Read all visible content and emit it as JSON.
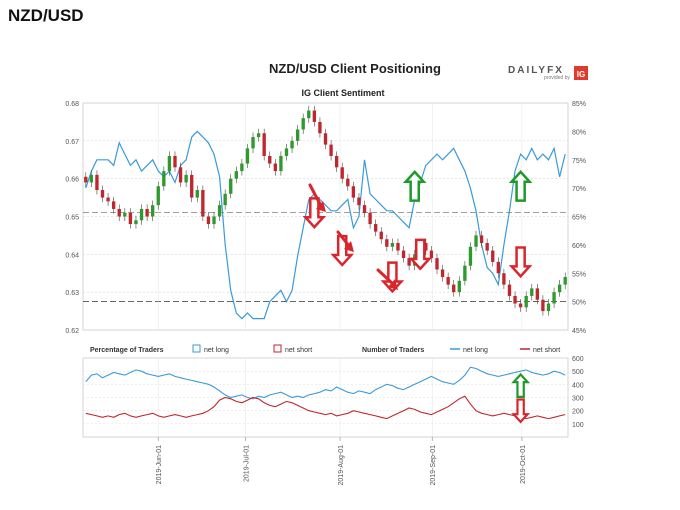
{
  "page_title": "NZD/USD",
  "brand": {
    "logo_text": "DAILYFX",
    "provided_by": "provided by",
    "ig_mark": "IG",
    "accent": "#e03a2f"
  },
  "chart_data": [
    {
      "type": "candlestick",
      "title": "NZD/USD Client Positioning",
      "subtitle": "IG Client Sentiment",
      "ylim_left": [
        0.62,
        0.68
      ],
      "y_ticks_left": [
        "0.62",
        "0.63",
        "0.64",
        "0.65",
        "0.66",
        "0.67",
        "0.68"
      ],
      "ylim_right": [
        45,
        85
      ],
      "y_ticks_right": [
        "45%",
        "50%",
        "55%",
        "60%",
        "65%",
        "70%",
        "75%",
        "80%",
        "85%"
      ],
      "x_ticks": [
        "2019-Jun-01",
        "2019-Jul-01",
        "2019-Aug-01",
        "2019-Sep-01",
        "2019-Oct-01"
      ],
      "colors": {
        "up": "#2e9a2e",
        "down": "#c0262d",
        "long_line": "#3a9ad9",
        "net_long_area": "#e2f0f9",
        "net_short_area": "#fbe0e0"
      },
      "close": [
        0.659,
        0.661,
        0.657,
        0.655,
        0.654,
        0.652,
        0.65,
        0.651,
        0.648,
        0.649,
        0.652,
        0.65,
        0.653,
        0.658,
        0.662,
        0.666,
        0.663,
        0.659,
        0.661,
        0.655,
        0.657,
        0.65,
        0.648,
        0.65,
        0.653,
        0.656,
        0.66,
        0.662,
        0.664,
        0.668,
        0.671,
        0.672,
        0.666,
        0.664,
        0.662,
        0.666,
        0.668,
        0.67,
        0.673,
        0.676,
        0.678,
        0.675,
        0.672,
        0.669,
        0.666,
        0.663,
        0.66,
        0.658,
        0.655,
        0.653,
        0.651,
        0.648,
        0.646,
        0.644,
        0.642,
        0.643,
        0.641,
        0.639,
        0.637,
        0.64,
        0.643,
        0.641,
        0.639,
        0.636,
        0.634,
        0.632,
        0.63,
        0.633,
        0.637,
        0.642,
        0.645,
        0.643,
        0.641,
        0.638,
        0.635,
        0.632,
        0.629,
        0.627,
        0.626,
        0.629,
        0.631,
        0.628,
        0.625,
        0.627,
        0.63,
        0.632,
        0.634
      ],
      "long_pct": [
        70,
        73,
        75,
        75,
        75,
        74,
        78,
        76,
        74,
        75,
        73,
        74,
        75,
        73,
        72,
        73,
        71,
        74,
        75,
        79,
        80,
        79,
        78,
        76,
        72,
        60,
        52,
        48,
        47,
        48,
        47,
        47,
        47,
        50,
        51,
        52,
        50,
        52,
        58,
        63,
        68,
        69,
        68,
        67,
        66,
        66,
        67,
        68,
        63,
        65,
        75,
        69,
        68,
        67,
        66,
        66,
        65,
        64,
        63,
        68,
        71,
        74,
        75,
        76,
        75,
        76,
        77,
        75,
        73,
        70,
        66,
        60,
        56,
        55,
        53,
        60,
        66,
        73,
        76,
        75,
        77,
        75,
        76,
        75,
        77,
        72,
        76
      ],
      "sentiment_markers": [
        {
          "type": "short",
          "x_index": 41,
          "price": 0.651
        },
        {
          "type": "short",
          "x_index": 46,
          "price": 0.641
        },
        {
          "type": "short",
          "x_index": 55,
          "price": 0.634
        },
        {
          "type": "long",
          "x_index": 59,
          "price": 0.658
        },
        {
          "type": "short",
          "x_index": 60,
          "price": 0.64
        },
        {
          "type": "long",
          "x_index": 78,
          "price": 0.658
        },
        {
          "type": "short",
          "x_index": 78,
          "price": 0.638
        }
      ]
    },
    {
      "type": "line",
      "legend": {
        "pct_label": "Percentage of Traders",
        "net_long": "net long",
        "net_short": "net short",
        "num_label": "Number of Traders",
        "num_long": "net long",
        "num_short": "net short"
      },
      "ylim": [
        0,
        600
      ],
      "y_ticks": [
        "100",
        "200",
        "300",
        "400",
        "500",
        "600"
      ],
      "series": [
        {
          "name": "net long",
          "color": "#3a9ad9",
          "values": [
            420,
            470,
            480,
            450,
            470,
            490,
            480,
            470,
            490,
            510,
            500,
            480,
            470,
            460,
            470,
            480,
            460,
            450,
            440,
            430,
            420,
            410,
            400,
            380,
            350,
            320,
            300,
            310,
            320,
            300,
            290,
            310,
            300,
            320,
            330,
            340,
            320,
            300,
            310,
            300,
            320,
            330,
            340,
            360,
            350,
            380,
            360,
            340,
            330,
            350,
            340,
            330,
            360,
            380,
            400,
            390,
            370,
            360,
            380,
            400,
            420,
            440,
            460,
            440,
            420,
            410,
            400,
            430,
            470,
            530,
            520,
            500,
            480,
            470,
            460,
            470,
            480,
            490,
            500,
            510,
            490,
            480,
            470,
            480,
            500,
            490,
            470
          ]
        },
        {
          "name": "net short",
          "color": "#c0262d",
          "values": [
            180,
            170,
            160,
            150,
            160,
            150,
            170,
            180,
            160,
            150,
            160,
            170,
            180,
            160,
            150,
            160,
            170,
            160,
            150,
            160,
            170,
            180,
            200,
            230,
            280,
            300,
            290,
            270,
            260,
            280,
            300,
            290,
            260,
            240,
            230,
            250,
            270,
            260,
            240,
            220,
            200,
            190,
            180,
            170,
            180,
            160,
            170,
            180,
            200,
            190,
            180,
            170,
            160,
            150,
            140,
            160,
            180,
            200,
            220,
            210,
            190,
            180,
            170,
            190,
            210,
            230,
            260,
            290,
            310,
            250,
            200,
            180,
            170,
            160,
            170,
            180,
            170,
            160,
            150,
            140,
            150,
            160,
            150,
            140,
            150,
            160,
            170
          ]
        }
      ],
      "markers": [
        {
          "type": "long",
          "x_index": 78,
          "value": 390
        },
        {
          "type": "short",
          "x_index": 78,
          "value": 200
        }
      ]
    }
  ]
}
